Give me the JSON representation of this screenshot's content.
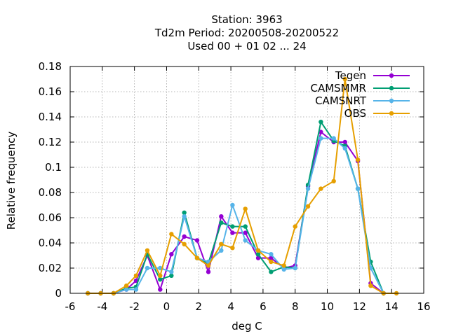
{
  "chart_data": {
    "type": "line",
    "title_lines": [
      "Station:      3963",
      "Td2m  Period: 20200508-20200522",
      "Used  00 + 01 02 ... 24"
    ],
    "xlabel": "deg C",
    "ylabel": "Relative frequency",
    "xlim": [
      -6,
      16
    ],
    "ylim": [
      0,
      0.18
    ],
    "xticks": [
      -6,
      -4,
      -2,
      0,
      2,
      4,
      6,
      8,
      10,
      12,
      14,
      16
    ],
    "yticks": [
      0,
      0.02,
      0.04,
      0.06,
      0.08,
      0.1,
      0.12,
      0.14,
      0.16,
      0.18
    ],
    "grid": true,
    "legend_position": "top-right",
    "series": [
      {
        "name": "Tegen",
        "color": "#9400d3",
        "x": [
          -4.9,
          -4.1,
          -3.3,
          -2.5,
          -1.9,
          -1.2,
          -0.4,
          0.3,
          1.1,
          1.9,
          2.6,
          3.4,
          4.1,
          4.9,
          5.7,
          6.5,
          7.3,
          8.0,
          8.8,
          9.6,
          10.4,
          11.1,
          11.9,
          12.7,
          13.5
        ],
        "values": [
          0.0,
          0.0,
          0.0,
          0.003,
          0.01,
          0.03,
          0.003,
          0.031,
          0.045,
          0.042,
          0.017,
          0.061,
          0.048,
          0.048,
          0.028,
          0.028,
          0.02,
          0.022,
          0.085,
          0.128,
          0.12,
          0.12,
          0.105,
          0.008,
          0.0
        ]
      },
      {
        "name": "CAMSMMR",
        "color": "#009e73",
        "x": [
          -4.9,
          -4.1,
          -3.3,
          -2.5,
          -1.9,
          -1.2,
          -0.4,
          0.3,
          1.1,
          1.9,
          2.6,
          3.4,
          4.1,
          4.9,
          5.7,
          6.5,
          7.3,
          8.0,
          8.8,
          9.6,
          10.4,
          11.1,
          11.9,
          12.7,
          13.5
        ],
        "values": [
          0.0,
          0.0,
          0.0,
          0.004,
          0.005,
          0.031,
          0.011,
          0.014,
          0.064,
          0.028,
          0.024,
          0.056,
          0.053,
          0.053,
          0.031,
          0.017,
          0.021,
          0.02,
          0.086,
          0.136,
          0.121,
          0.117,
          0.083,
          0.025,
          0.0
        ]
      },
      {
        "name": "CAMSNRT",
        "color": "#56b4e9",
        "x": [
          -4.9,
          -4.1,
          -3.3,
          -2.5,
          -1.9,
          -1.2,
          -0.4,
          0.3,
          1.1,
          1.9,
          2.6,
          3.4,
          4.1,
          4.9,
          5.7,
          6.5,
          7.3,
          8.0,
          8.8,
          9.6,
          10.4,
          11.1,
          11.9,
          12.7,
          13.5
        ],
        "values": [
          0.0,
          0.0,
          0.0,
          0.003,
          0.003,
          0.02,
          0.02,
          0.017,
          0.061,
          0.028,
          0.025,
          0.034,
          0.07,
          0.042,
          0.034,
          0.031,
          0.019,
          0.02,
          0.083,
          0.123,
          0.123,
          0.115,
          0.083,
          0.02,
          0.0
        ]
      },
      {
        "name": "OBS",
        "color": "#e69f00",
        "x": [
          -4.9,
          -4.1,
          -3.3,
          -2.5,
          -1.9,
          -1.2,
          -0.4,
          0.3,
          1.1,
          1.9,
          2.6,
          3.4,
          4.1,
          4.9,
          5.7,
          6.5,
          7.3,
          8.0,
          8.8,
          9.6,
          10.4,
          11.1,
          11.9,
          12.7,
          13.5,
          14.3
        ],
        "values": [
          0.0,
          0.0,
          0.0,
          0.006,
          0.014,
          0.034,
          0.014,
          0.047,
          0.039,
          0.028,
          0.022,
          0.039,
          0.036,
          0.067,
          0.034,
          0.025,
          0.022,
          0.053,
          0.069,
          0.083,
          0.089,
          0.17,
          0.106,
          0.006,
          0.0,
          0.0
        ]
      }
    ]
  }
}
